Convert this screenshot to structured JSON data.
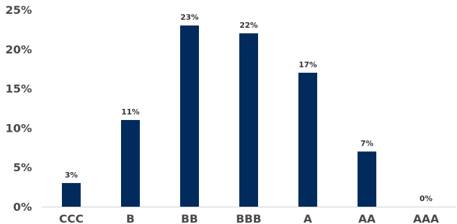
{
  "chart_data": {
    "type": "bar",
    "categories": [
      "CCC",
      "B",
      "BB",
      "BBB",
      "A",
      "AA",
      "AAA"
    ],
    "values": [
      3,
      11,
      23,
      22,
      17,
      7,
      0
    ],
    "data_labels": [
      "3%",
      "11%",
      "23%",
      "22%",
      "17%",
      "7%",
      "0%"
    ],
    "y_ticks": [
      0,
      5,
      10,
      15,
      20,
      25
    ],
    "y_tick_labels": [
      "0%",
      "5%",
      "10%",
      "15%",
      "20%",
      "25%"
    ],
    "ylim": [
      0,
      25
    ],
    "grid": false,
    "legend": "none",
    "title": "",
    "xlabel": "",
    "ylabel": "",
    "colors": {
      "bar": "#002b5c",
      "axis": "#d0d0d0",
      "tick_text": "#4a4a4a",
      "label_text": "#333333"
    }
  }
}
